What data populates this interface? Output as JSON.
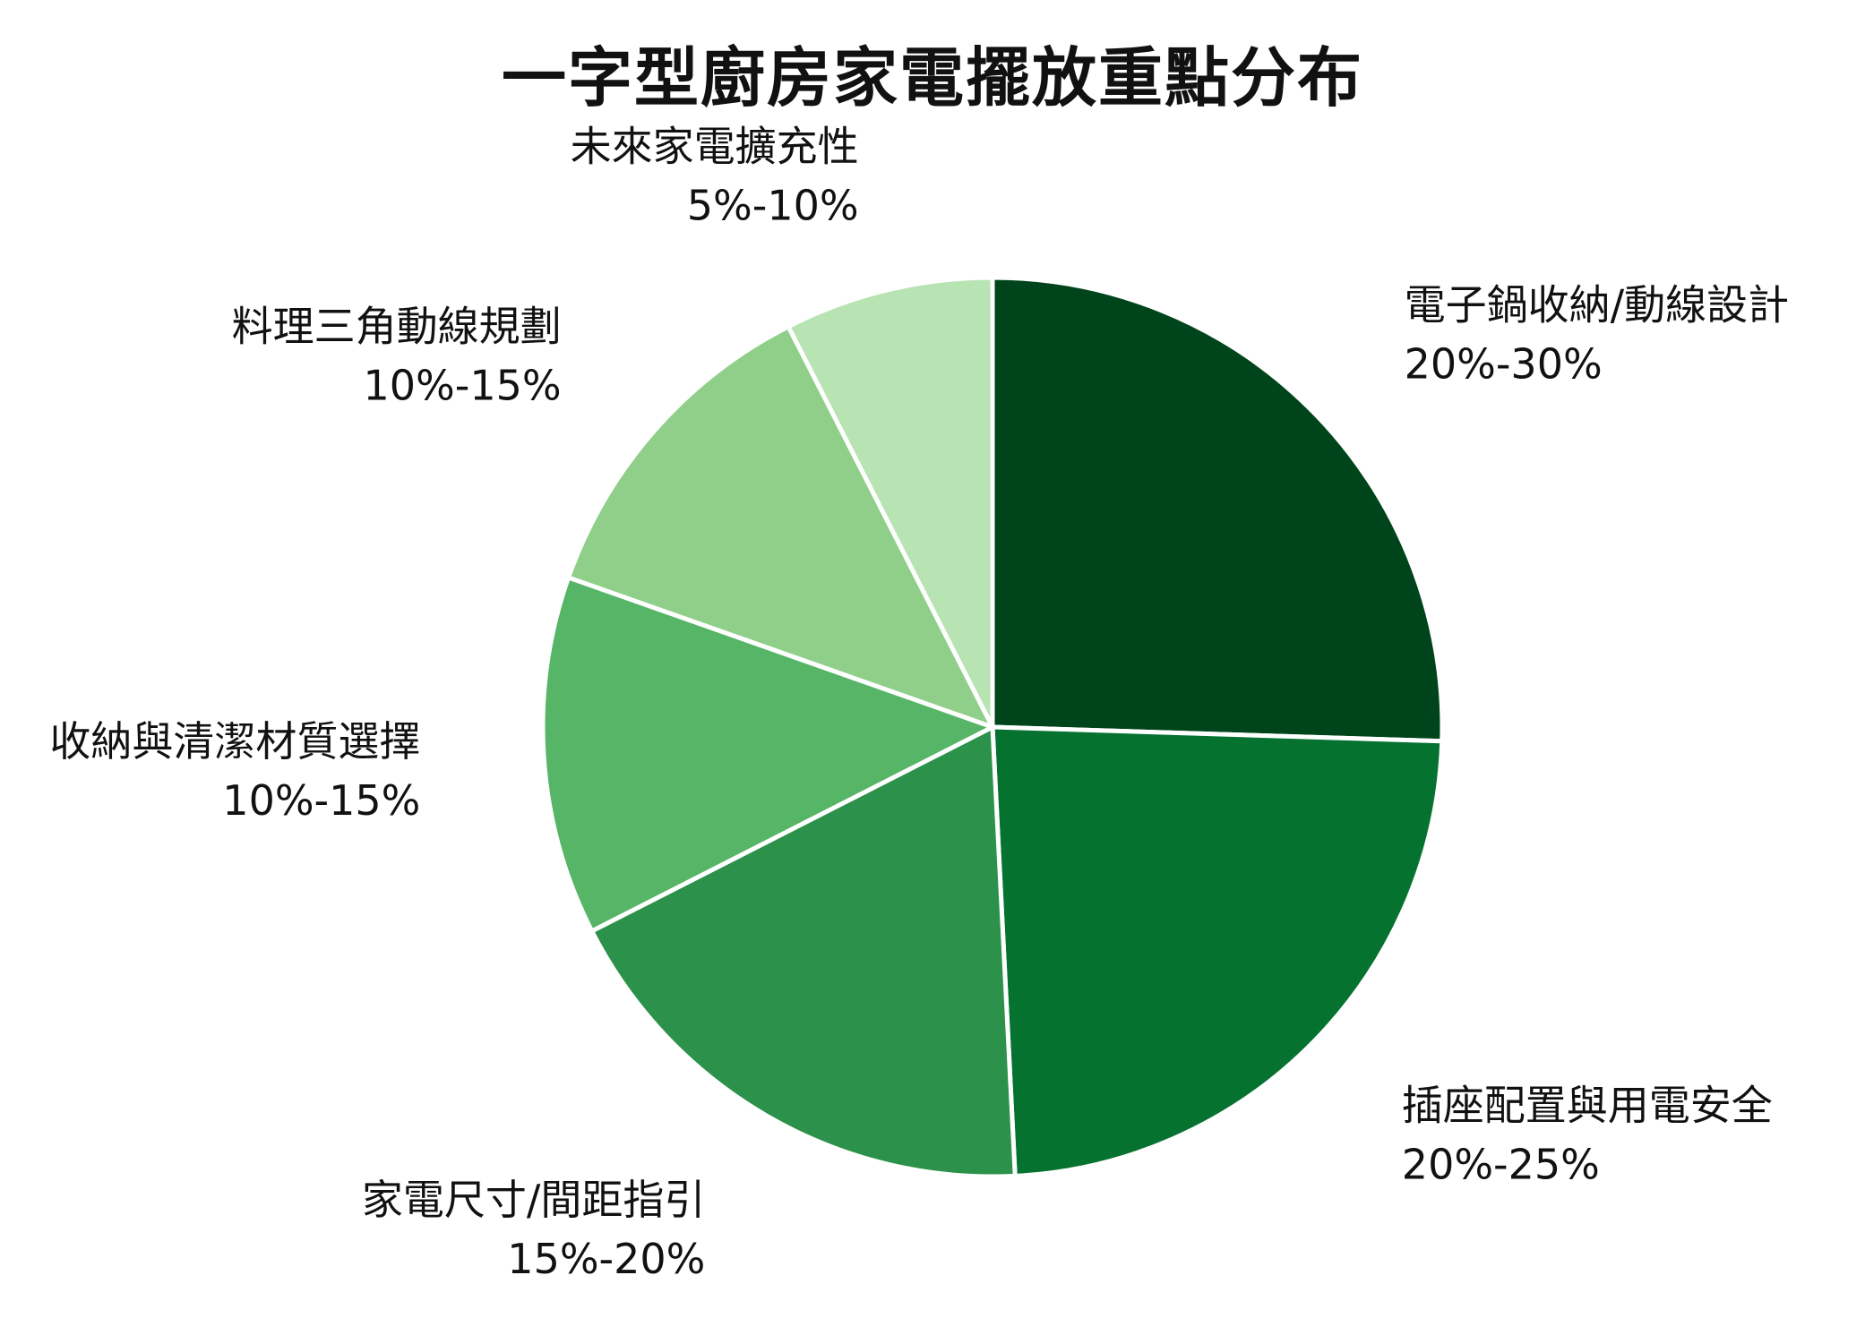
{
  "chart_data": {
    "type": "pie",
    "title": "一字型廚房家電擺放重點分布",
    "start_angle_deg": 0,
    "direction": "clockwise",
    "slice_border_color": "#ffffff",
    "slices": [
      {
        "label": "電子鍋收納/動線設計",
        "range_label": "20%-30%",
        "value": 25.5,
        "color": "#00441b"
      },
      {
        "label": "插座配置與用電安全",
        "range_label": "20%-25%",
        "value": 23.7,
        "color": "#067230"
      },
      {
        "label": "家電尺寸/間距指引",
        "range_label": "15%-20%",
        "value": 18.3,
        "color": "#2c924b"
      },
      {
        "label": "收納與清潔材質選擇",
        "range_label": "10%-15%",
        "value": 12.9,
        "color": "#56b567"
      },
      {
        "label": "料理三角動線規劃",
        "range_label": "10%-15%",
        "value": 12.1,
        "color": "#8fcf89"
      },
      {
        "label": "未來家電擴充性",
        "range_label": "5%-10%",
        "value": 7.5,
        "color": "#b8e3b2"
      }
    ]
  }
}
